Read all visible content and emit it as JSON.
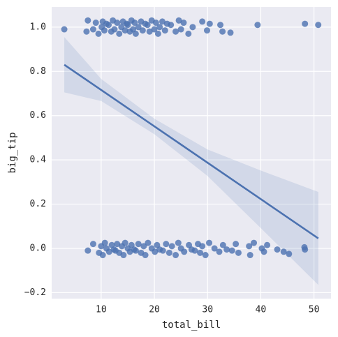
{
  "chart_data": {
    "type": "scatter",
    "xlabel": "total_bill",
    "ylabel": "big_tip",
    "xlim": [
      0.7,
      53.2
    ],
    "ylim": [
      -0.227,
      1.091
    ],
    "xticks": [
      10,
      20,
      30,
      40,
      50
    ],
    "yticks": [
      {
        "value": -0.2,
        "label": "−0.2"
      },
      {
        "value": 0,
        "label": "0.0"
      },
      0.2,
      0.4,
      0.6,
      0.8,
      {
        "value": 1,
        "label": "1.0"
      }
    ],
    "grid": true,
    "series": [
      {
        "color": "#4c72b0",
        "x": [
          3.07,
          7.25,
          7.5,
          8.5,
          9.0,
          9.5,
          10.1,
          10.3,
          10.6,
          11.0,
          11.4,
          11.9,
          12.2,
          12.5,
          13.0,
          13.4,
          13.8,
          14.1,
          14.5,
          14.8,
          15.0,
          15.4,
          15.7,
          16.0,
          16.3,
          16.5,
          17.0,
          17.5,
          17.8,
          18.3,
          18.7,
          19.1,
          19.5,
          20.0,
          20.3,
          20.7,
          21.0,
          21.5,
          22.0,
          22.4,
          23.1,
          24.0,
          24.6,
          25.0,
          25.5,
          26.4,
          27.2,
          29.0,
          29.9,
          30.4,
          32.4,
          32.8,
          34.3,
          39.4,
          48.3,
          50.8,
          7.5,
          8.5,
          9.6,
          10.0,
          10.3,
          10.7,
          11.0,
          11.5,
          12.0,
          12.4,
          12.7,
          13.0,
          13.4,
          13.9,
          14.2,
          14.5,
          15.0,
          15.4,
          15.7,
          16.2,
          16.5,
          17.0,
          17.5,
          18.0,
          18.3,
          18.8,
          19.5,
          20.1,
          20.5,
          21.0,
          21.6,
          22.2,
          22.8,
          23.3,
          24.0,
          24.5,
          25.0,
          25.6,
          26.5,
          27.0,
          27.6,
          28.2,
          28.6,
          29.0,
          29.6,
          30.3,
          31.3,
          32.2,
          32.9,
          33.6,
          34.6,
          35.3,
          35.8,
          37.8,
          38.0,
          38.7,
          40.2,
          40.6,
          41.2,
          43.1,
          44.3,
          45.3,
          48.2,
          48.3
        ],
        "values": [
          0.99,
          0.98,
          1.03,
          0.99,
          1.02,
          0.97,
          1.0,
          1.025,
          0.985,
          1.015,
          1.01,
          0.98,
          1.03,
          0.99,
          1.02,
          0.97,
          1.0,
          1.025,
          0.985,
          1.015,
          1.01,
          0.98,
          1.03,
          0.99,
          1.02,
          0.97,
          1.0,
          1.025,
          0.985,
          1.015,
          1.01,
          0.98,
          1.03,
          0.99,
          1.02,
          0.97,
          1.0,
          1.025,
          0.985,
          1.015,
          1.01,
          0.98,
          1.03,
          0.99,
          1.02,
          0.97,
          1.0,
          1.025,
          0.985,
          1.015,
          1.01,
          0.98,
          0.975,
          1.01,
          1.015,
          1.01,
          -0.01,
          0.02,
          -0.02,
          0.01,
          -0.03,
          0.025,
          0.0,
          -0.015,
          0.015,
          -0.005,
          -0.01,
          0.02,
          -0.02,
          0.01,
          -0.03,
          0.025,
          0.0,
          -0.015,
          0.015,
          -0.005,
          -0.01,
          0.02,
          -0.02,
          0.01,
          -0.03,
          0.025,
          0.0,
          -0.015,
          0.015,
          -0.005,
          -0.01,
          0.02,
          -0.02,
          0.01,
          -0.03,
          0.025,
          0.0,
          -0.015,
          0.015,
          -0.005,
          -0.01,
          0.02,
          -0.02,
          0.01,
          -0.03,
          0.025,
          0.0,
          -0.015,
          0.015,
          -0.005,
          -0.01,
          0.02,
          -0.02,
          0.01,
          -0.03,
          0.025,
          0.0,
          -0.015,
          0.015,
          -0.005,
          -0.015,
          -0.025,
          0.005,
          -0.005
        ]
      }
    ],
    "regression": {
      "color": "#4c72b0",
      "x": [
        3.07,
        50.81
      ],
      "values": [
        0.83,
        0.045
      ]
    },
    "ci": {
      "x": [
        3.07,
        10,
        20,
        30,
        40,
        50.81
      ],
      "upper": [
        0.955,
        0.766,
        0.586,
        0.447,
        0.352,
        0.255
      ],
      "lower": [
        0.705,
        0.666,
        0.516,
        0.327,
        0.092,
        -0.165
      ]
    }
  }
}
